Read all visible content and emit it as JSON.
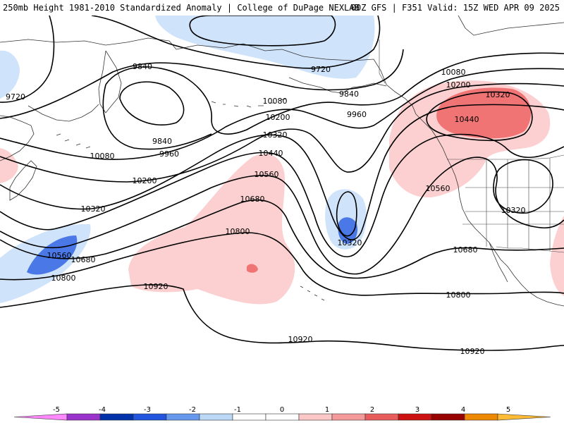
{
  "header": {
    "left_title": "250mb Height 1981-2010 Standardized Anomaly | College of DuPage NEXLAB",
    "right_title": "00Z GFS | F351 Valid: 15Z WED APR 09 2025"
  },
  "colors": {
    "anom_neg_light": "#cfe3fa",
    "anom_neg_mid": "#4a78e6",
    "anom_neg_dark": "#1f4fcc",
    "anom_pos_light": "#fcd0d0",
    "anom_pos_mid": "#f07474",
    "anom_pos_dark": "#d42a2a"
  },
  "contour_labels": [
    {
      "text": "9720"
    },
    {
      "text": "9720"
    },
    {
      "text": "9840"
    },
    {
      "text": "9840"
    },
    {
      "text": "9840"
    },
    {
      "text": "9960"
    },
    {
      "text": "9960"
    },
    {
      "text": "10080"
    },
    {
      "text": "10080"
    },
    {
      "text": "10080"
    },
    {
      "text": "10200"
    },
    {
      "text": "10200"
    },
    {
      "text": "10200"
    },
    {
      "text": "10320"
    },
    {
      "text": "10320"
    },
    {
      "text": "10320"
    },
    {
      "text": "10320"
    },
    {
      "text": "10320"
    },
    {
      "text": "10440"
    },
    {
      "text": "10440"
    },
    {
      "text": "10560"
    },
    {
      "text": "10560"
    },
    {
      "text": "10560"
    },
    {
      "text": "10680"
    },
    {
      "text": "10680"
    },
    {
      "text": "10680"
    },
    {
      "text": "10800"
    },
    {
      "text": "10800"
    },
    {
      "text": "10800"
    },
    {
      "text": "10920"
    },
    {
      "text": "10920"
    },
    {
      "text": "10920"
    }
  ],
  "colorbar": {
    "ticks": [
      "-5",
      "-4",
      "-3",
      "-2",
      "-1",
      "0",
      "1",
      "2",
      "3",
      "4",
      "5"
    ],
    "colors": [
      "#ff88ff",
      "#9933cc",
      "#0033aa",
      "#2255dd",
      "#6699ee",
      "#bbd8f7",
      "#ffffff",
      "#ffffff",
      "#fbc7c7",
      "#f59a9a",
      "#e85c5c",
      "#cc1111",
      "#990000",
      "#ee8800",
      "#ffbb33"
    ]
  }
}
